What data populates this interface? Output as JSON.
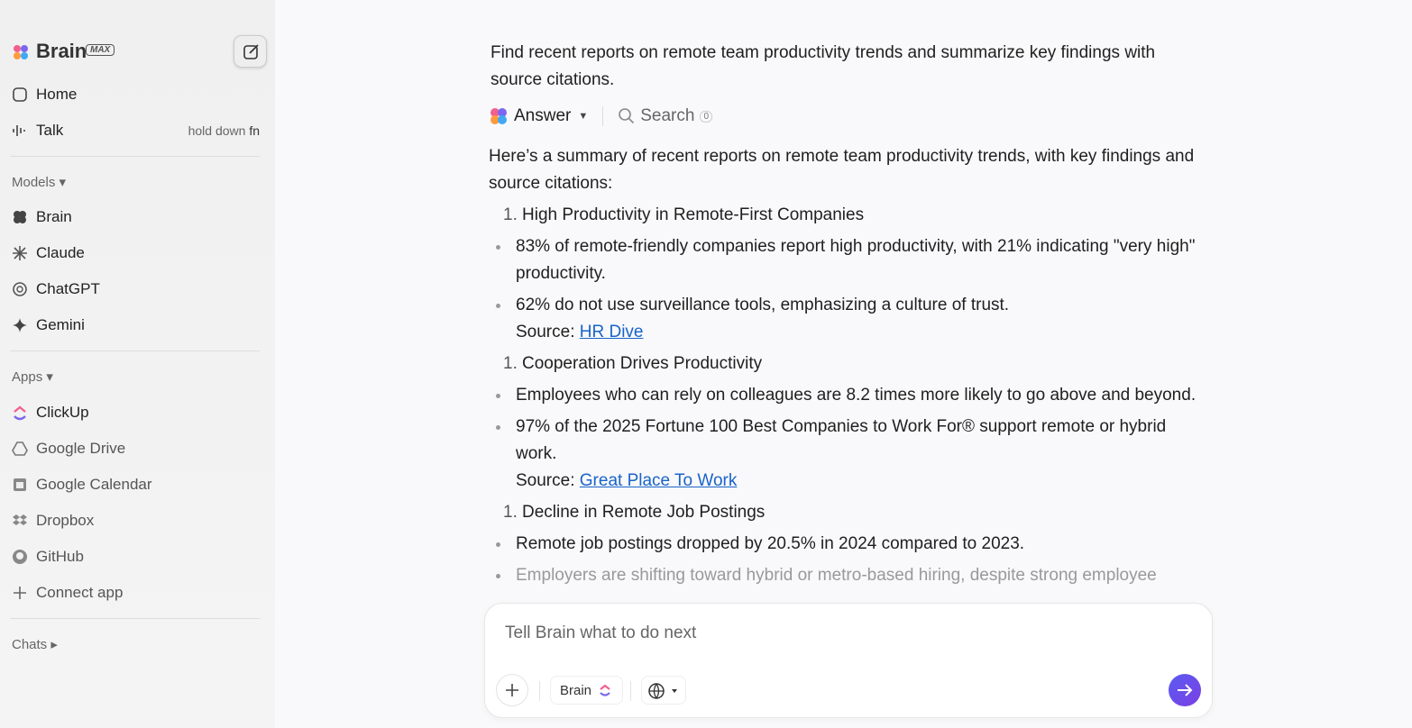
{
  "sidebar": {
    "brand": "Brain",
    "badge": "MAX",
    "nav": [
      {
        "label": "Home"
      },
      {
        "label": "Talk",
        "hint": "hold down",
        "key": "fn"
      }
    ],
    "models_heading": "Models",
    "models": [
      "Brain",
      "Claude",
      "ChatGPT",
      "Gemini"
    ],
    "apps_heading": "Apps",
    "apps": [
      "ClickUp",
      "Google Drive",
      "Google Calendar",
      "Dropbox",
      "GitHub",
      "Connect app"
    ],
    "chats_heading": "Chats"
  },
  "conversation": {
    "prompt": "Find recent reports on remote team productivity trends and summarize key findings with source citations.",
    "tabs": {
      "answer": "Answer",
      "search": "Search",
      "search_count": 0
    },
    "intro": "Here’s a summary of recent reports on remote team productivity trends, with key findings and source citations:",
    "sections": [
      {
        "marker": "1.",
        "title": "High Productivity in Remote-First Companies",
        "bullets": [
          "83% of remote-friendly companies report high productivity, with 21% indicating \"very high\" productivity.",
          "62% do not use surveillance tools, emphasizing a culture of trust."
        ],
        "source_prefix": "Source:",
        "source": "HR Dive"
      },
      {
        "marker": "1.",
        "title": "Cooperation Drives Productivity",
        "bullets": [
          "Employees who can rely on colleagues are 8.2 times more likely to go above and beyond.",
          "97% of the 2025 Fortune 100 Best Companies to Work For® support remote or hybrid work."
        ],
        "source_prefix": "Source:",
        "source": "Great Place To Work"
      },
      {
        "marker": "1.",
        "title": "Decline in Remote Job Postings",
        "bullets": [
          "Remote job postings dropped by 20.5% in 2024 compared to 2023.",
          "Employers are shifting toward hybrid or metro-based hiring, despite strong employee"
        ]
      }
    ]
  },
  "composer": {
    "placeholder": "Tell Brain what to do next",
    "model": "Brain"
  }
}
